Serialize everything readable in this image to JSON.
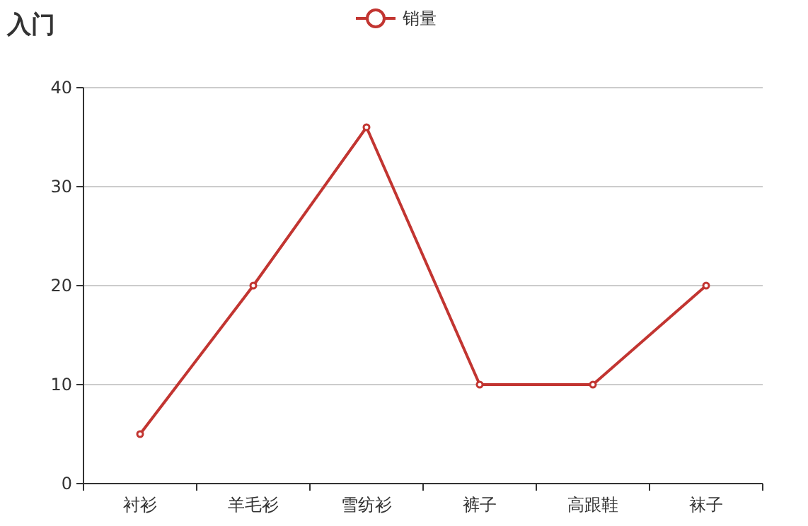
{
  "chart_data": {
    "type": "line",
    "title": "入门",
    "categories": [
      "衬衫",
      "羊毛衫",
      "雪纺衫",
      "裤子",
      "高跟鞋",
      "袜子"
    ],
    "series": [
      {
        "name": "销量",
        "color": "#c23531",
        "values": [
          5,
          20,
          36,
          10,
          10,
          20
        ]
      }
    ],
    "ylim": [
      0,
      40
    ],
    "yticks": [
      0,
      10,
      20,
      30,
      40
    ],
    "grid": "y",
    "legend": "top",
    "marker": "circle"
  }
}
